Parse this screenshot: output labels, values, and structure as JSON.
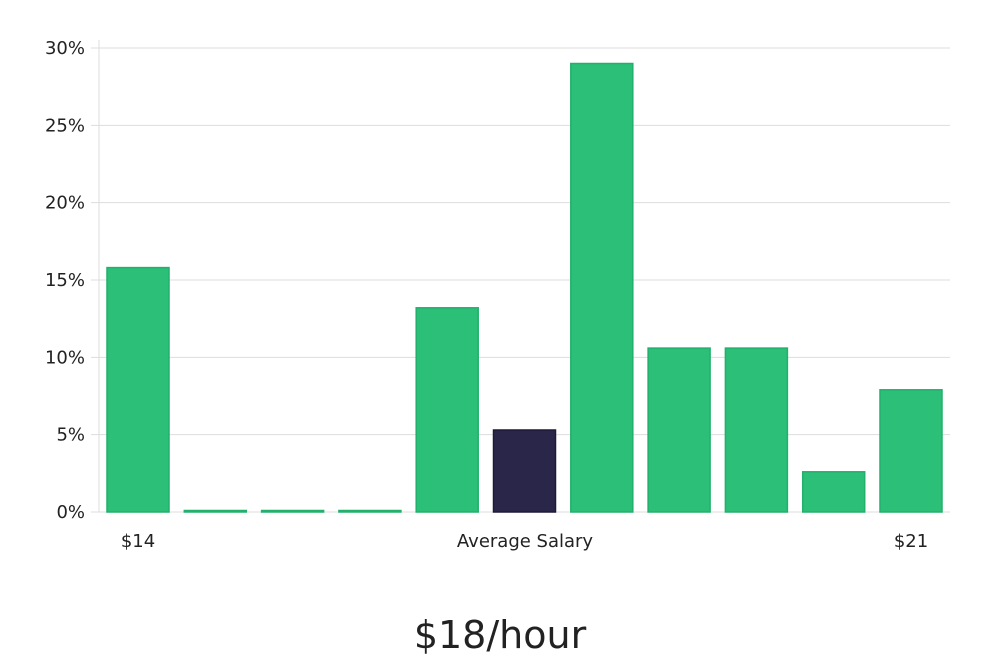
{
  "chart_data": {
    "type": "bar",
    "values": [
      15.8,
      0,
      0,
      0,
      13.2,
      5.3,
      29.0,
      10.6,
      10.6,
      2.6,
      7.9
    ],
    "highlight_index": 5,
    "ylim": [
      0,
      30
    ],
    "yticks": [
      0,
      5,
      10,
      15,
      20,
      25,
      30
    ],
    "ytick_format": "%",
    "x_labels": {
      "left": "$14",
      "center": "Average Salary",
      "right": "$21"
    },
    "headline": "$18/hour",
    "grid": true,
    "colors": {
      "bar": "#2bbf78",
      "highlight": "#2a2649",
      "grid": "#dddddd",
      "text": "#222222"
    }
  }
}
